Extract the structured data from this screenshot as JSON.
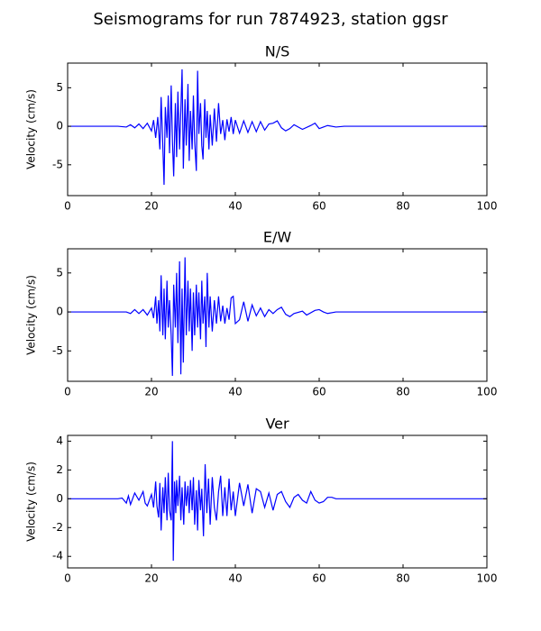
{
  "title": "Seismograms for run 7874923, station ggsr",
  "chart_data": [
    {
      "type": "line",
      "title": "N/S",
      "ylabel": "Velocity (cm/s)",
      "color": "#0000ff",
      "xlim": [
        0,
        100
      ],
      "xticks": [
        0,
        20,
        40,
        60,
        80,
        100
      ],
      "ylim": [
        -9,
        8.2
      ],
      "yticks": [
        -5,
        0,
        5
      ],
      "x": [
        0,
        12,
        14,
        15,
        16,
        17,
        18,
        19,
        20,
        20.5,
        21,
        21.5,
        22,
        22.3,
        22.7,
        23,
        23.3,
        23.7,
        24,
        24.3,
        24.7,
        25,
        25.3,
        25.7,
        26,
        26.3,
        26.7,
        27,
        27.3,
        27.6,
        28,
        28.3,
        28.7,
        29,
        29.3,
        29.7,
        30,
        30.3,
        30.7,
        31,
        31.3,
        31.7,
        32,
        32.3,
        32.7,
        33,
        33.3,
        33.7,
        34,
        34.5,
        35,
        35.5,
        36,
        36.5,
        37,
        37.5,
        38,
        38.5,
        39,
        39.5,
        40,
        41,
        42,
        43,
        44,
        45,
        46,
        47,
        48,
        49,
        50,
        51,
        52,
        53,
        54,
        56,
        58,
        59,
        60,
        61,
        62,
        64,
        66,
        70,
        100
      ],
      "values": [
        0,
        0,
        -0.1,
        0.2,
        -0.2,
        0.3,
        -0.3,
        0.4,
        -0.6,
        0.8,
        -1.5,
        1.2,
        -3,
        3.8,
        -2.5,
        -7.6,
        2.5,
        -1.5,
        4,
        -3.5,
        5.3,
        -2,
        -6.5,
        3,
        -4,
        4.5,
        -3,
        2,
        7.4,
        -5.5,
        3.5,
        -2.5,
        5.5,
        -4.5,
        2,
        -3,
        4,
        -2,
        -5.8,
        7.2,
        -1,
        3,
        -2.5,
        -4.3,
        3.5,
        -1.5,
        2,
        -3,
        1.5,
        -2.5,
        2.3,
        -2,
        3,
        -1,
        0.8,
        -1.8,
        0.9,
        -0.7,
        1.2,
        -1,
        0.8,
        -0.9,
        0.7,
        -0.8,
        0.6,
        -0.7,
        0.6,
        -0.5,
        0.3,
        0.4,
        0.7,
        -0.2,
        -0.6,
        -0.3,
        0.2,
        -0.4,
        0.1,
        0.4,
        -0.3,
        -0.1,
        0.1,
        -0.1,
        0,
        0,
        0
      ]
    },
    {
      "type": "line",
      "title": "E/W",
      "ylabel": "Velocity (cm/s)",
      "color": "#0000ff",
      "xlim": [
        0,
        100
      ],
      "xticks": [
        0,
        20,
        40,
        60,
        80,
        100
      ],
      "ylim": [
        -8.9,
        8.1
      ],
      "yticks": [
        -5,
        0,
        5
      ],
      "x": [
        0,
        12,
        14,
        15,
        16,
        17,
        18,
        19,
        20,
        20.5,
        21,
        21.3,
        21.7,
        22,
        22.3,
        22.7,
        23,
        23.3,
        23.7,
        24,
        24.3,
        24.7,
        25,
        25.3,
        25.7,
        26,
        26.3,
        26.7,
        27,
        27.3,
        27.6,
        28,
        28.3,
        28.7,
        29,
        29.3,
        29.7,
        30,
        30.3,
        30.7,
        31,
        31.3,
        31.7,
        32,
        32.3,
        32.7,
        33,
        33.3,
        33.7,
        34,
        34.5,
        35,
        35.5,
        36,
        36.5,
        37,
        37.5,
        38,
        38.5,
        39,
        39.5,
        40,
        41,
        42,
        43,
        44,
        45,
        46,
        47,
        48,
        49,
        50,
        51,
        52,
        53,
        54,
        56,
        57,
        59,
        60,
        61,
        62,
        64,
        66,
        70,
        100
      ],
      "values": [
        0,
        0,
        0,
        -0.2,
        0.3,
        -0.2,
        0.3,
        -0.4,
        0.5,
        -0.8,
        2,
        -1.5,
        1.5,
        -2.5,
        4.7,
        -3,
        3,
        -3.5,
        4,
        -2,
        1.5,
        -3,
        -8.2,
        3.5,
        -2,
        5,
        -4,
        6.5,
        -8,
        3,
        -6.5,
        7,
        -3,
        4,
        -2.5,
        3,
        -5,
        2.5,
        -3,
        3.5,
        -2,
        2.5,
        -3.5,
        4,
        -1.5,
        2,
        -4.5,
        5,
        -2,
        2,
        -2.5,
        1.5,
        -1.5,
        2,
        -1.2,
        0.8,
        -1.5,
        0.5,
        -1,
        1.8,
        2,
        -1.5,
        -1,
        1.3,
        -1.2,
        0.9,
        -0.5,
        0.5,
        -0.6,
        0.3,
        -0.2,
        0.3,
        0.6,
        -0.3,
        -0.6,
        -0.2,
        0.1,
        -0.4,
        0.2,
        0.3,
        0,
        -0.2,
        0,
        0,
        0,
        0
      ]
    },
    {
      "type": "line",
      "title": "Ver",
      "ylabel": "Velocity (cm/s)",
      "color": "#0000ff",
      "xlim": [
        0,
        100
      ],
      "xticks": [
        0,
        20,
        40,
        60,
        80,
        100
      ],
      "ylim": [
        -4.8,
        4.4
      ],
      "yticks": [
        -4,
        -2,
        0,
        2,
        4
      ],
      "x": [
        0,
        12,
        13,
        14,
        14.5,
        15,
        16,
        17,
        18,
        18.5,
        19,
        20,
        20.5,
        21,
        21.3,
        21.7,
        22,
        22.3,
        22.7,
        23,
        23.3,
        23.7,
        24,
        24.3,
        24.7,
        25,
        25.2,
        25.5,
        25.8,
        26,
        26.3,
        26.7,
        27,
        27.3,
        27.7,
        28,
        28.3,
        28.7,
        29,
        29.3,
        29.7,
        30,
        30.3,
        30.7,
        31,
        31.3,
        31.7,
        32,
        32.4,
        32.8,
        33.2,
        33.6,
        34,
        34.5,
        35,
        35.5,
        36,
        36.5,
        37,
        37.5,
        38,
        38.5,
        39,
        39.5,
        40,
        41,
        42,
        43,
        44,
        45,
        46,
        47,
        48,
        49,
        50,
        51,
        52,
        53,
        54,
        55,
        56,
        57,
        58,
        59,
        60,
        61,
        62,
        63,
        64,
        66,
        70,
        100
      ],
      "values": [
        0,
        0,
        0.05,
        -0.3,
        0.2,
        -0.4,
        0.4,
        -0.1,
        0.5,
        -0.3,
        -0.5,
        0.3,
        -0.6,
        1.2,
        -0.5,
        -1.3,
        1.1,
        -2.2,
        0.8,
        -1,
        1.5,
        -1.5,
        1.8,
        -0.8,
        -1.5,
        4,
        -4.3,
        1.2,
        -1,
        1.3,
        -0.5,
        1.6,
        -1.5,
        0.8,
        -1.8,
        1.2,
        -0.5,
        0.9,
        -1,
        1.3,
        -0.8,
        1.5,
        -1.8,
        0.6,
        -2.2,
        1.3,
        -0.8,
        0.7,
        -2.6,
        2.4,
        -1,
        1.4,
        -1.8,
        1.5,
        -0.6,
        -1.5,
        0.5,
        1.6,
        -1.2,
        0.8,
        -1.2,
        1.4,
        -0.8,
        0.5,
        -1.2,
        1.1,
        -0.5,
        1,
        -1,
        0.7,
        0.5,
        -0.6,
        0.4,
        -0.8,
        0.3,
        0.5,
        -0.2,
        -0.6,
        0.1,
        0.3,
        -0.1,
        -0.3,
        0.5,
        -0.1,
        -0.3,
        -0.2,
        0.1,
        0.1,
        0,
        0,
        0,
        0
      ]
    }
  ]
}
